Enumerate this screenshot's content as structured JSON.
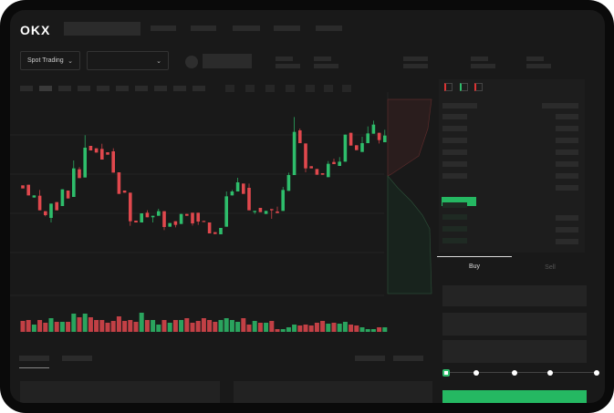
{
  "header": {
    "logo": "OKX",
    "market_select": "Spot Trading",
    "pair_select": ""
  },
  "trade": {
    "tabs": [
      {
        "label": "Buy",
        "active": true
      },
      {
        "label": "Sell",
        "active": false
      }
    ],
    "slider_percent": 0,
    "submit_color": "#25b862"
  },
  "colors": {
    "up": "#2ebd6b",
    "down": "#e0484d",
    "background": "#191919"
  },
  "chart_data": {
    "type": "candlestick",
    "title": "",
    "candles": [
      [
        170,
        170,
        160,
        160
      ],
      [
        172,
        172,
        137,
        137
      ],
      [
        130,
        137,
        130,
        137
      ],
      [
        136,
        155,
        88,
        88
      ],
      [
        85,
        85,
        68,
        72
      ],
      [
        63,
        110,
        48,
        110
      ],
      [
        115,
        115,
        88,
        88
      ],
      [
        102,
        157,
        102,
        157
      ],
      [
        153,
        153,
        127,
        127
      ],
      [
        132,
        252,
        132,
        226
      ],
      [
        223,
        230,
        194,
        194
      ],
      [
        196,
        335,
        196,
        294
      ],
      [
        300,
        300,
        285,
        285
      ],
      [
        292,
        292,
        278,
        278
      ],
      [
        290,
        307,
        255,
        255
      ],
      [
        279,
        279,
        271,
        271
      ],
      [
        282,
        292,
        212,
        212
      ],
      [
        213,
        213,
        142,
        142
      ],
      [
        153,
        153,
        146,
        146
      ],
      [
        146,
        146,
        37,
        52
      ],
      [
        54,
        54,
        48,
        48
      ],
      [
        48,
        78,
        48,
        78
      ],
      [
        80,
        88,
        65,
        65
      ],
      [
        65,
        70,
        48,
        70
      ],
      [
        70,
        93,
        70,
        85
      ],
      [
        85,
        85,
        23,
        33
      ],
      [
        34,
        46,
        34,
        46
      ],
      [
        52,
        52,
        32,
        40
      ],
      [
        43,
        76,
        43,
        76
      ],
      [
        76,
        76,
        70,
        70
      ],
      [
        80,
        80,
        38,
        45
      ],
      [
        80,
        80,
        40,
        51
      ],
      [
        53,
        53,
        50,
        50
      ],
      [
        48,
        48,
        12,
        12
      ],
      [
        16,
        16,
        10,
        10
      ],
      [
        9,
        30,
        9,
        30
      ],
      [
        34,
        150,
        34,
        134
      ],
      [
        137,
        155,
        137,
        150
      ],
      [
        150,
        195,
        150,
        180
      ],
      [
        176,
        176,
        142,
        142
      ],
      [
        162,
        176,
        88,
        88
      ],
      [
        82,
        86,
        76,
        86
      ],
      [
        96,
        96,
        82,
        82
      ],
      [
        76,
        86,
        76,
        86
      ],
      [
        92,
        92,
        60,
        88
      ],
      [
        84,
        100,
        79,
        79
      ],
      [
        86,
        165,
        86,
        155
      ],
      [
        152,
        212,
        152,
        204
      ],
      [
        204,
        395,
        204,
        346
      ],
      [
        351,
        357,
        309,
        309
      ],
      [
        308,
        308,
        213,
        226
      ],
      [
        233,
        233,
        226,
        226
      ],
      [
        224,
        224,
        205,
        205
      ],
      [
        210,
        210,
        205,
        205
      ],
      [
        197,
        250,
        197,
        241
      ],
      [
        247,
        258,
        240,
        240
      ],
      [
        234,
        263,
        234,
        248
      ],
      [
        248,
        337,
        248,
        337
      ],
      [
        343,
        343,
        301,
        301
      ],
      [
        302,
        302,
        286,
        286
      ],
      [
        280,
        330,
        280,
        309
      ],
      [
        309,
        364,
        309,
        341
      ],
      [
        340,
        383,
        340,
        370
      ],
      [
        343,
        343,
        308,
        319
      ],
      [
        312,
        353,
        312,
        334
      ]
    ],
    "volumes": [
      12,
      13,
      8,
      13,
      10,
      15,
      11,
      11,
      11,
      20,
      16,
      20,
      16,
      13,
      13,
      10,
      12,
      17,
      12,
      13,
      11,
      21,
      13,
      13,
      8,
      13,
      10,
      13,
      13,
      15,
      10,
      12,
      15,
      13,
      11,
      13,
      15,
      13,
      11,
      15,
      8,
      12,
      10,
      10,
      12,
      3,
      3,
      5,
      8,
      7,
      8,
      7,
      10,
      12,
      9,
      10,
      9,
      11,
      8,
      7,
      5,
      3,
      3,
      5,
      5
    ]
  }
}
